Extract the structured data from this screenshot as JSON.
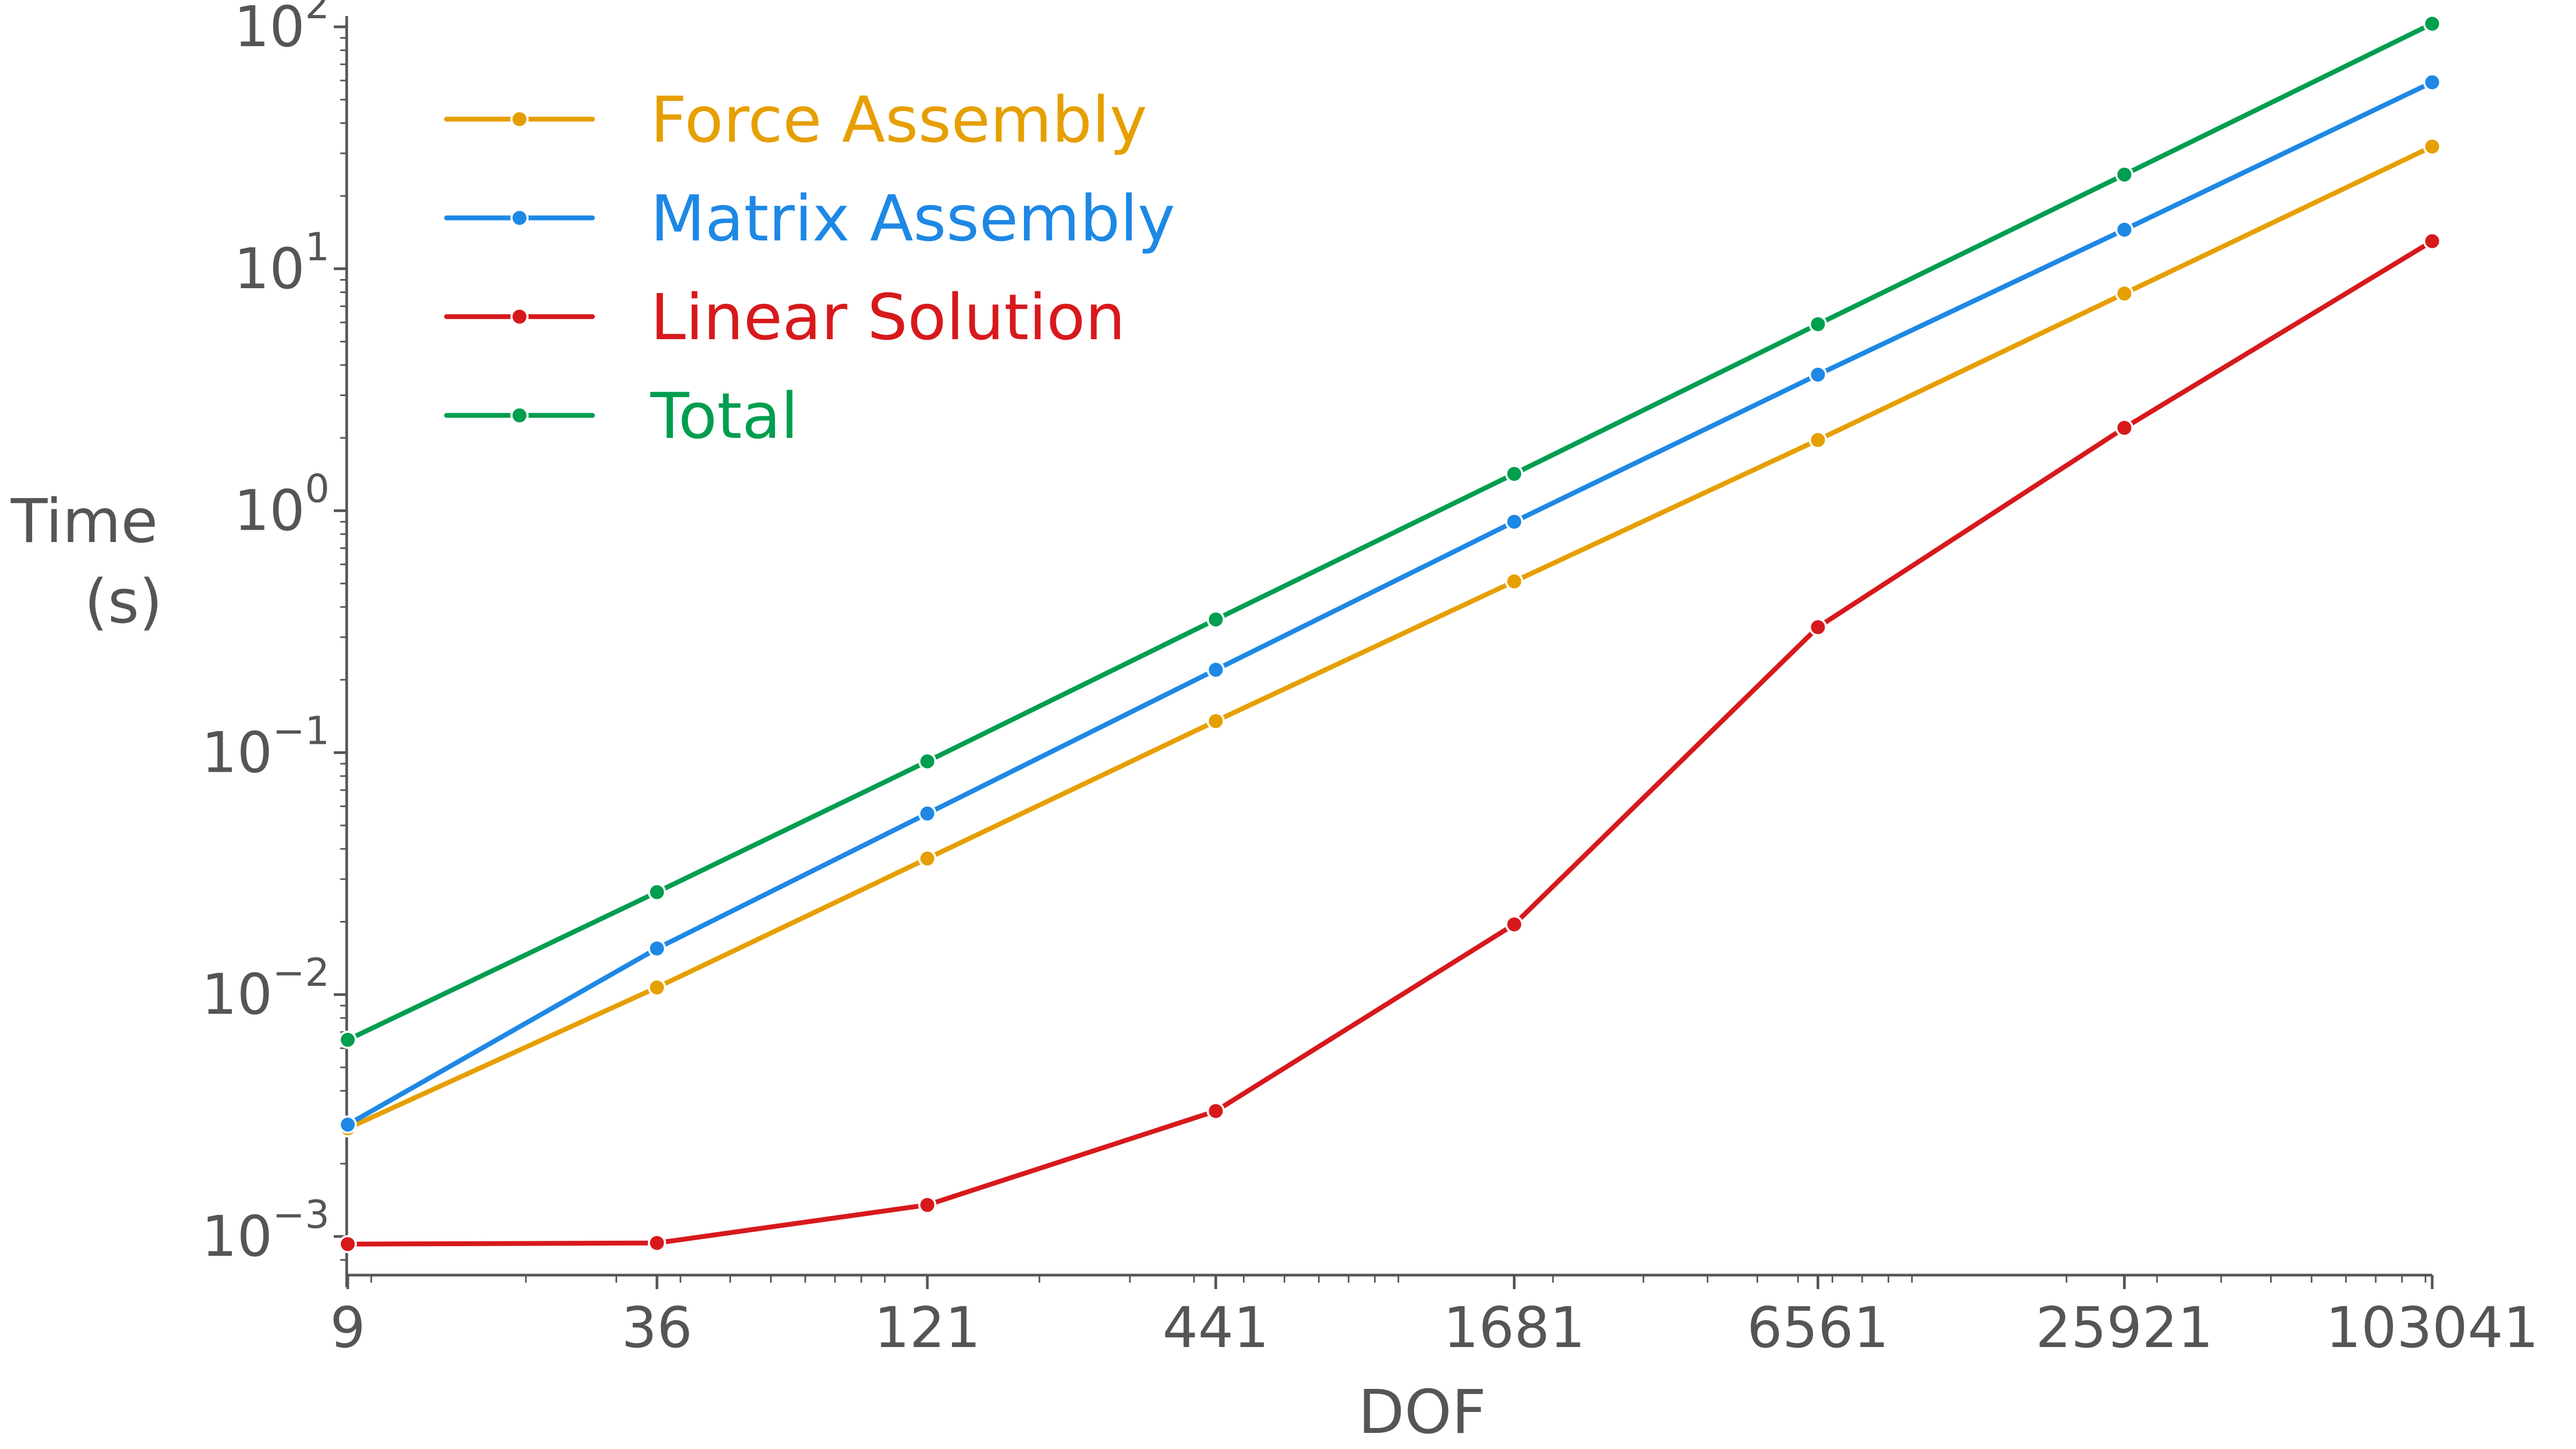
{
  "chart_data": {
    "type": "line",
    "title": "",
    "xlabel": "DOF",
    "ylabel_lines": [
      "Time",
      "(s)"
    ],
    "xscale": "log",
    "yscale": "log",
    "x": [
      9,
      36,
      121,
      441,
      1681,
      6561,
      25921,
      103041
    ],
    "x_tick_labels": [
      "9",
      "36",
      "121",
      "441",
      "1681",
      "6561",
      "25921",
      "103041"
    ],
    "y_ticks": [
      {
        "base": "10",
        "exp": "−3",
        "value": 0.001
      },
      {
        "base": "10",
        "exp": "−2",
        "value": 0.01
      },
      {
        "base": "10",
        "exp": "−1",
        "value": 0.1
      },
      {
        "base": "10",
        "exp": "0",
        "value": 1
      },
      {
        "base": "10",
        "exp": "1",
        "value": 10
      },
      {
        "base": "10",
        "exp": "2",
        "value": 100
      }
    ],
    "ylim": [
      0.00072,
      100
    ],
    "grid": false,
    "legend_position": "top-left",
    "series": [
      {
        "name": "Force Assembly",
        "color": "#E69F00",
        "values": [
          0.0028,
          0.0107,
          0.0365,
          0.135,
          0.51,
          1.96,
          7.9,
          32
        ]
      },
      {
        "name": "Matrix Assembly",
        "color": "#1E88E5",
        "values": [
          0.0029,
          0.0155,
          0.056,
          0.22,
          0.9,
          3.65,
          14.5,
          59
        ]
      },
      {
        "name": "Linear Solution",
        "color": "#D7191C",
        "values": [
          0.00093,
          0.00094,
          0.00135,
          0.0033,
          0.0195,
          0.33,
          2.2,
          13
        ]
      },
      {
        "name": "Total",
        "color": "#009E4F",
        "values": [
          0.0065,
          0.0265,
          0.092,
          0.355,
          1.42,
          5.9,
          24.5,
          103
        ]
      }
    ]
  }
}
